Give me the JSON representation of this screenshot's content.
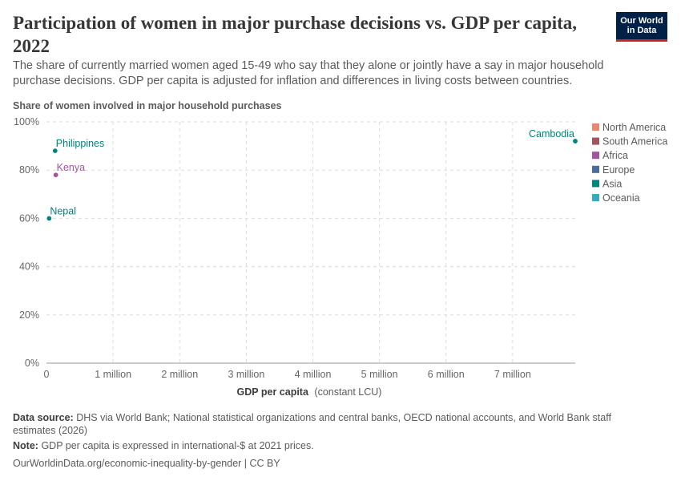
{
  "header": {
    "title": "Participation of women in major purchase decisions vs. GDP per capita, 2022",
    "subtitle": "The share of currently married women aged 15-49 who say that they alone or jointly have a say in major household purchase decisions. GDP per capita is adjusted for inflation and differences in living costs between countries.",
    "logo_line1": "Our World",
    "logo_line2": "in Data"
  },
  "chart_data": {
    "type": "scatter",
    "ylabel": "Share of women involved in major household purchases",
    "xlabel_bold": "GDP per capita",
    "xlabel_unit": "(constant LCU)",
    "xlim": [
      0,
      8000000
    ],
    "ylim": [
      0,
      100
    ],
    "x_ticks": [
      {
        "value": 0,
        "label": "0"
      },
      {
        "value": 1000000,
        "label": "1 million"
      },
      {
        "value": 2000000,
        "label": "2 million"
      },
      {
        "value": 3000000,
        "label": "3 million"
      },
      {
        "value": 4000000,
        "label": "4 million"
      },
      {
        "value": 5000000,
        "label": "5 million"
      },
      {
        "value": 6000000,
        "label": "6 million"
      },
      {
        "value": 7000000,
        "label": "7 million"
      }
    ],
    "y_ticks": [
      {
        "value": 0,
        "label": "0%"
      },
      {
        "value": 20,
        "label": "20%"
      },
      {
        "value": 40,
        "label": "40%"
      },
      {
        "value": 60,
        "label": "60%"
      },
      {
        "value": 80,
        "label": "80%"
      },
      {
        "value": 100,
        "label": "100%"
      }
    ],
    "points": [
      {
        "label": "Philippines",
        "x": 130000,
        "y": 88,
        "region": "Asia"
      },
      {
        "label": "Kenya",
        "x": 140000,
        "y": 78,
        "region": "Africa"
      },
      {
        "label": "Nepal",
        "x": 40000,
        "y": 60,
        "region": "Asia"
      },
      {
        "label": "Cambodia",
        "x": 7940000,
        "y": 92,
        "region": "Asia"
      }
    ],
    "legend": [
      {
        "name": "North America",
        "color": "#e6886e"
      },
      {
        "name": "South America",
        "color": "#a2555f"
      },
      {
        "name": "Africa",
        "color": "#a2559c"
      },
      {
        "name": "Europe",
        "color": "#4c6a9c"
      },
      {
        "name": "Asia",
        "color": "#00847e"
      },
      {
        "name": "Oceania",
        "color": "#38aaba"
      }
    ],
    "grid": true,
    "legend_position": "right"
  },
  "footer": {
    "source_label": "Data source:",
    "source_text": "DHS via World Bank; National statistical organizations and central banks, OECD national accounts, and World Bank staff estimates (2026)",
    "note_label": "Note:",
    "note_text": "GDP per capita is expressed in international-$ at 2021 prices.",
    "credit": "OurWorldinData.org/economic-inequality-by-gender | CC BY"
  }
}
